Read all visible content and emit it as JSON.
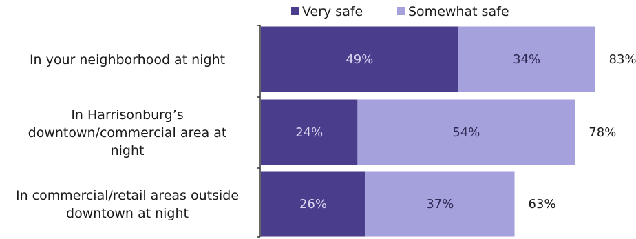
{
  "chart_data": {
    "type": "bar",
    "orientation": "horizontal",
    "stacked": true,
    "categories": [
      [
        "In your neighborhood at night"
      ],
      [
        "In Harrisonburg’s",
        "downtown/commercial area at",
        "night"
      ],
      [
        "In commercial/retail areas outside",
        "downtown at night"
      ]
    ],
    "series": [
      {
        "name": "Very safe",
        "values": [
          49,
          24,
          26
        ],
        "color": "#4a3d8c",
        "label_color": "#d9d4f0"
      },
      {
        "name": "Somewhat safe",
        "values": [
          34,
          54,
          37
        ],
        "color": "#a5a1dc",
        "label_color": "#2e2a55"
      }
    ],
    "totals": [
      83,
      78,
      63
    ],
    "value_suffix": "%",
    "xlim": [
      0,
      100
    ],
    "legend_position": "top",
    "grid": false
  }
}
